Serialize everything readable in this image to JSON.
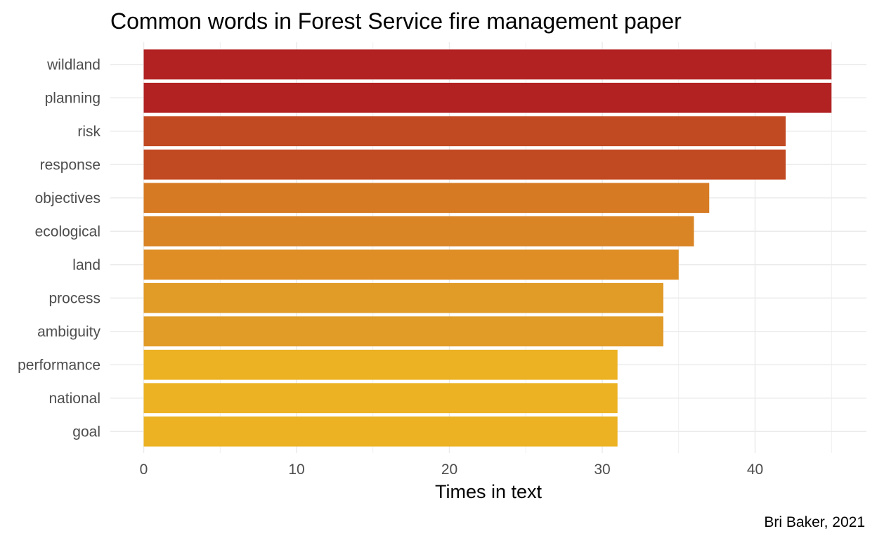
{
  "chart_data": {
    "type": "bar",
    "orientation": "horizontal",
    "title": "Common words in Forest Service fire management paper",
    "xlabel": "Times in text",
    "ylabel": "",
    "caption": "Bri Baker, 2021",
    "categories": [
      "wildland",
      "planning",
      "risk",
      "response",
      "objectives",
      "ecological",
      "land",
      "process",
      "ambiguity",
      "performance",
      "national",
      "goal"
    ],
    "values": [
      45,
      45,
      42,
      42,
      37,
      36,
      35,
      34,
      34,
      31,
      31,
      31
    ],
    "colors": [
      "#b22222",
      "#b22222",
      "#c24a22",
      "#c24a22",
      "#d67b24",
      "#d98425",
      "#df8e25",
      "#e19b27",
      "#e19b27",
      "#ecb223",
      "#ecb223",
      "#ecb223"
    ],
    "xlim": [
      0,
      45
    ],
    "xticks": [
      0,
      10,
      20,
      30,
      40
    ],
    "grid": true,
    "legend": "none"
  }
}
